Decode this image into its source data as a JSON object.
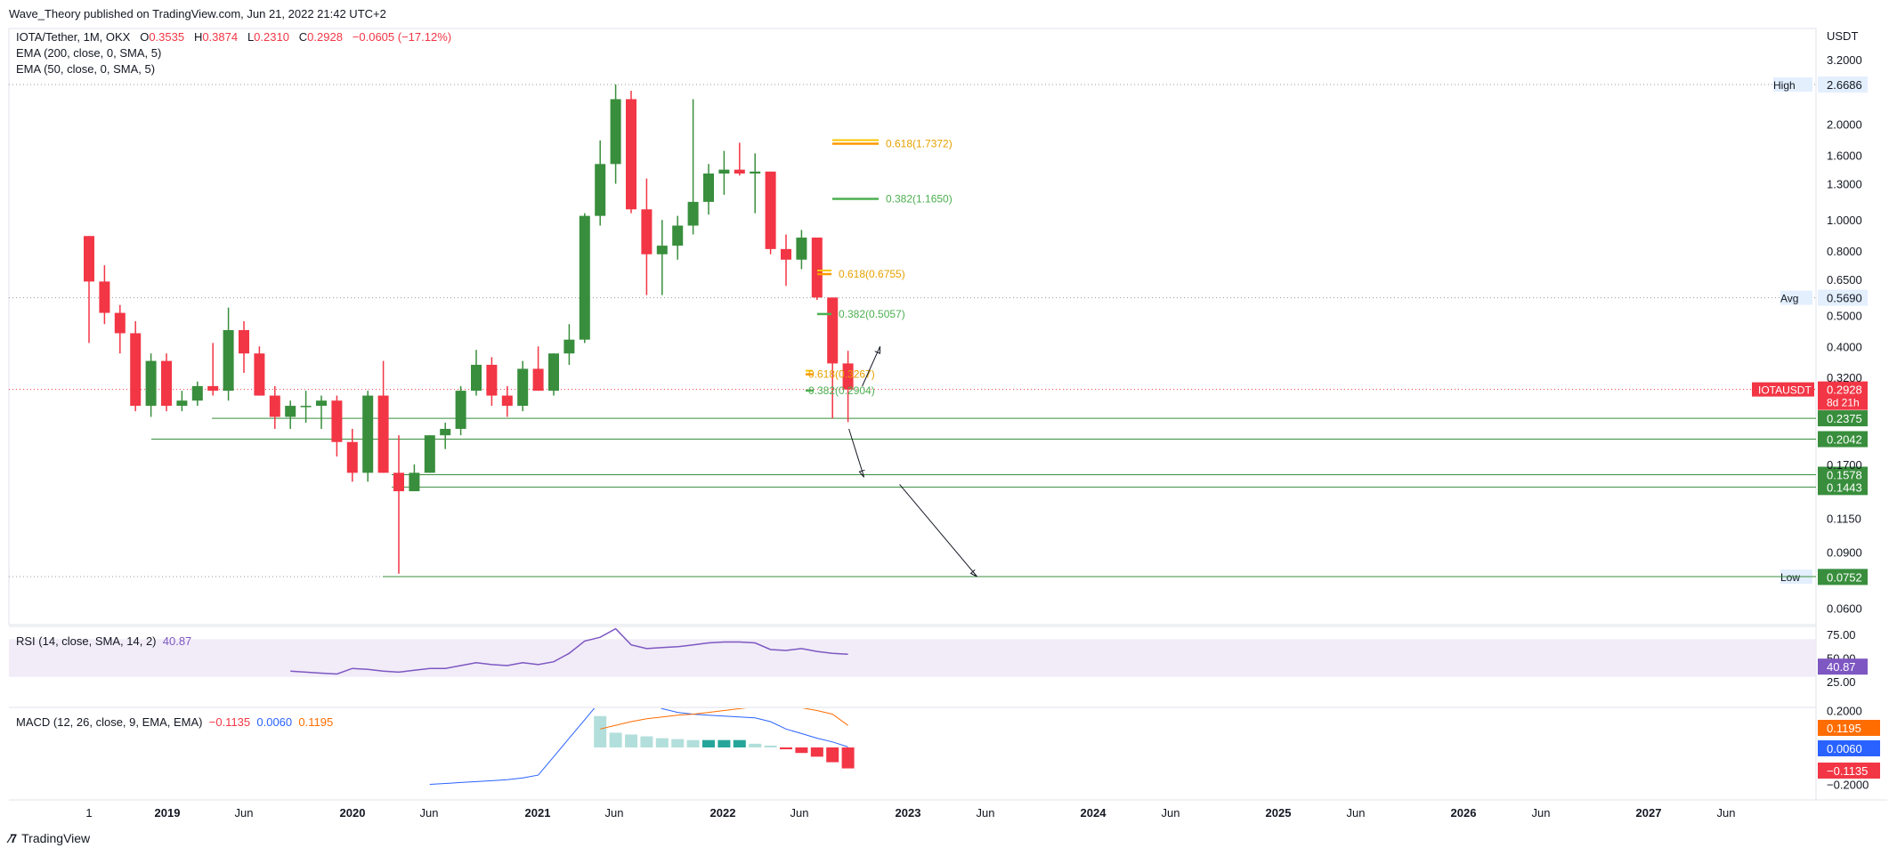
{
  "header": {
    "published_by": "Wave_Theory published on TradingView.com, Jun 21, 2022 21:42 UTC+2"
  },
  "legend": {
    "symbol": "IOTA/Tether, 1M, OKX",
    "o_label": "O",
    "o_value": "0.3535",
    "h_label": "H",
    "h_value": "0.3874",
    "l_label": "L",
    "l_value": "0.2310",
    "c_label": "C",
    "c_value": "0.2928",
    "change": "−0.0605 (−17.12%)",
    "ema200": "EMA (200, close, 0, SMA, 5)",
    "ema50": "EMA (50, close, 0, SMA, 5)"
  },
  "rsi": {
    "label": "RSI (14, close, SMA, 14, 2)",
    "value": "40.87"
  },
  "macd": {
    "label": "MACD (12, 26, close, 9, EMA, EMA)",
    "hist": "−0.1135",
    "macd": "0.0060",
    "signal": "0.1195"
  },
  "footer": {
    "brand": "TradingView"
  },
  "colors": {
    "up": "#388e3c",
    "down": "#f23645",
    "fib_orange": "#ff9800",
    "fib_yellow": "#f7c600",
    "fib_green": "#4caf50",
    "rsi": "#7e57c2",
    "macd": "#2962ff",
    "signal": "#ff6d00"
  },
  "chart_data": {
    "type": "candlestick",
    "price_axis": {
      "unit": "USDT",
      "scale": "log",
      "ticks": [
        "3.2000",
        "2.0000",
        "1.6000",
        "1.3000",
        "1.0000",
        "0.8000",
        "0.6500",
        "0.5000",
        "0.4000",
        "0.3200",
        "0.1700",
        "0.1150",
        "0.0900",
        "0.0600"
      ],
      "tick_values": [
        3.2,
        2.0,
        1.6,
        1.3,
        1.0,
        0.8,
        0.65,
        0.5,
        0.4,
        0.32,
        0.17,
        0.115,
        0.09,
        0.06
      ]
    },
    "time_axis": {
      "labels": [
        "1",
        "2019",
        "Jun",
        "2020",
        "Jun",
        "2021",
        "Jun",
        "2022",
        "Jun",
        "2023",
        "Jun",
        "2024",
        "Jun",
        "2025",
        "Jun",
        "2026",
        "Jun",
        "2027",
        "Jun"
      ],
      "bold": [
        "2019",
        "2020",
        "2021",
        "2022",
        "2023",
        "2024",
        "2025",
        "2026",
        "2027"
      ]
    },
    "candles": [
      {
        "o": 0.89,
        "h": 0.89,
        "l": 0.41,
        "c": 0.64
      },
      {
        "o": 0.64,
        "h": 0.72,
        "l": 0.47,
        "c": 0.51
      },
      {
        "o": 0.51,
        "h": 0.54,
        "l": 0.38,
        "c": 0.44
      },
      {
        "o": 0.44,
        "h": 0.48,
        "l": 0.25,
        "c": 0.26
      },
      {
        "o": 0.26,
        "h": 0.38,
        "l": 0.24,
        "c": 0.36
      },
      {
        "o": 0.36,
        "h": 0.38,
        "l": 0.25,
        "c": 0.26
      },
      {
        "o": 0.26,
        "h": 0.29,
        "l": 0.25,
        "c": 0.27
      },
      {
        "o": 0.27,
        "h": 0.31,
        "l": 0.26,
        "c": 0.3
      },
      {
        "o": 0.3,
        "h": 0.41,
        "l": 0.28,
        "c": 0.29
      },
      {
        "o": 0.29,
        "h": 0.53,
        "l": 0.27,
        "c": 0.45
      },
      {
        "o": 0.45,
        "h": 0.48,
        "l": 0.33,
        "c": 0.38
      },
      {
        "o": 0.38,
        "h": 0.4,
        "l": 0.28,
        "c": 0.28
      },
      {
        "o": 0.28,
        "h": 0.3,
        "l": 0.22,
        "c": 0.24
      },
      {
        "o": 0.24,
        "h": 0.27,
        "l": 0.22,
        "c": 0.26
      },
      {
        "o": 0.26,
        "h": 0.29,
        "l": 0.23,
        "c": 0.26
      },
      {
        "o": 0.26,
        "h": 0.28,
        "l": 0.22,
        "c": 0.27
      },
      {
        "o": 0.27,
        "h": 0.28,
        "l": 0.18,
        "c": 0.2
      },
      {
        "o": 0.2,
        "h": 0.22,
        "l": 0.15,
        "c": 0.16
      },
      {
        "o": 0.16,
        "h": 0.29,
        "l": 0.15,
        "c": 0.28
      },
      {
        "o": 0.28,
        "h": 0.36,
        "l": 0.16,
        "c": 0.16
      },
      {
        "o": 0.16,
        "h": 0.21,
        "l": 0.077,
        "c": 0.14
      },
      {
        "o": 0.14,
        "h": 0.17,
        "l": 0.14,
        "c": 0.16
      },
      {
        "o": 0.16,
        "h": 0.21,
        "l": 0.16,
        "c": 0.21
      },
      {
        "o": 0.21,
        "h": 0.23,
        "l": 0.19,
        "c": 0.22
      },
      {
        "o": 0.22,
        "h": 0.3,
        "l": 0.21,
        "c": 0.29
      },
      {
        "o": 0.29,
        "h": 0.39,
        "l": 0.28,
        "c": 0.35
      },
      {
        "o": 0.35,
        "h": 0.37,
        "l": 0.26,
        "c": 0.28
      },
      {
        "o": 0.28,
        "h": 0.3,
        "l": 0.24,
        "c": 0.26
      },
      {
        "o": 0.26,
        "h": 0.36,
        "l": 0.25,
        "c": 0.34
      },
      {
        "o": 0.34,
        "h": 0.4,
        "l": 0.29,
        "c": 0.29
      },
      {
        "o": 0.29,
        "h": 0.38,
        "l": 0.28,
        "c": 0.38
      },
      {
        "o": 0.38,
        "h": 0.47,
        "l": 0.35,
        "c": 0.42
      },
      {
        "o": 0.42,
        "h": 1.05,
        "l": 0.41,
        "c": 1.03
      },
      {
        "o": 1.03,
        "h": 1.78,
        "l": 0.96,
        "c": 1.5
      },
      {
        "o": 1.5,
        "h": 2.67,
        "l": 1.3,
        "c": 2.4
      },
      {
        "o": 2.4,
        "h": 2.55,
        "l": 1.05,
        "c": 1.08
      },
      {
        "o": 1.08,
        "h": 1.35,
        "l": 0.58,
        "c": 0.78
      },
      {
        "o": 0.78,
        "h": 1.0,
        "l": 0.58,
        "c": 0.83
      },
      {
        "o": 0.83,
        "h": 1.03,
        "l": 0.75,
        "c": 0.96
      },
      {
        "o": 0.96,
        "h": 2.4,
        "l": 0.9,
        "c": 1.14
      },
      {
        "o": 1.14,
        "h": 1.5,
        "l": 1.04,
        "c": 1.4
      },
      {
        "o": 1.4,
        "h": 1.65,
        "l": 1.2,
        "c": 1.44
      },
      {
        "o": 1.44,
        "h": 1.75,
        "l": 1.38,
        "c": 1.4
      },
      {
        "o": 1.4,
        "h": 1.62,
        "l": 1.05,
        "c": 1.42
      },
      {
        "o": 1.42,
        "h": 1.42,
        "l": 0.78,
        "c": 0.81
      },
      {
        "o": 0.81,
        "h": 0.9,
        "l": 0.62,
        "c": 0.75
      },
      {
        "o": 0.75,
        "h": 0.93,
        "l": 0.7,
        "c": 0.88
      },
      {
        "o": 0.88,
        "h": 0.88,
        "l": 0.56,
        "c": 0.57
      },
      {
        "o": 0.57,
        "h": 0.57,
        "l": 0.237,
        "c": 0.3535
      },
      {
        "o": 0.3535,
        "h": 0.3874,
        "l": 0.231,
        "c": 0.2928
      }
    ],
    "price_lines": [
      {
        "price": 2.6686,
        "label": "High",
        "value": "2.6686",
        "style": "dotted"
      },
      {
        "price": 0.569,
        "label": "Avg",
        "value": "0.5690",
        "style": "dotted"
      },
      {
        "price": 0.0754,
        "label": "Low",
        "value": "0.0754",
        "style": "dotted"
      },
      {
        "price": 0.2928,
        "label": "IOTAUSDT",
        "value": "0.2928",
        "countdown": "8d 21h",
        "style": "dotted-red"
      }
    ],
    "support_levels": [
      {
        "price": 0.2375,
        "value": "0.2375"
      },
      {
        "price": 0.2042,
        "value": "0.2042"
      },
      {
        "price": 0.1578,
        "value": "0.1578"
      },
      {
        "price": 0.1443,
        "value": "0.1443"
      },
      {
        "price": 0.0752,
        "value": "0.0752"
      }
    ],
    "fib_levels": [
      {
        "price": 1.7372,
        "ratio": "0.618",
        "text": "0.618(1.7372)",
        "color": "orange"
      },
      {
        "price": 1.165,
        "ratio": "0.382",
        "text": "0.382(1.1650)",
        "color": "green"
      },
      {
        "price": 0.6755,
        "ratio": "0.618",
        "text": "0.618(0.6755)",
        "color": "orange"
      },
      {
        "price": 0.5057,
        "ratio": "0.382",
        "text": "0.382(0.5057)",
        "color": "green"
      },
      {
        "price": 0.3267,
        "ratio": "0.618",
        "text": "0.618(0.3267)",
        "color": "orange"
      },
      {
        "price": 0.2904,
        "ratio": "0.382",
        "text": "0.382(0.2904)",
        "color": "green"
      }
    ],
    "rsi_series": {
      "levels": [
        "75.00",
        "50.00",
        "25.00"
      ],
      "last": 40.87
    },
    "macd_series": {
      "axis_ticks": [
        "0.2000",
        "−0.2000"
      ],
      "hist_last": -0.1135,
      "macd_last": 0.006,
      "signal_last": 0.1195
    }
  }
}
